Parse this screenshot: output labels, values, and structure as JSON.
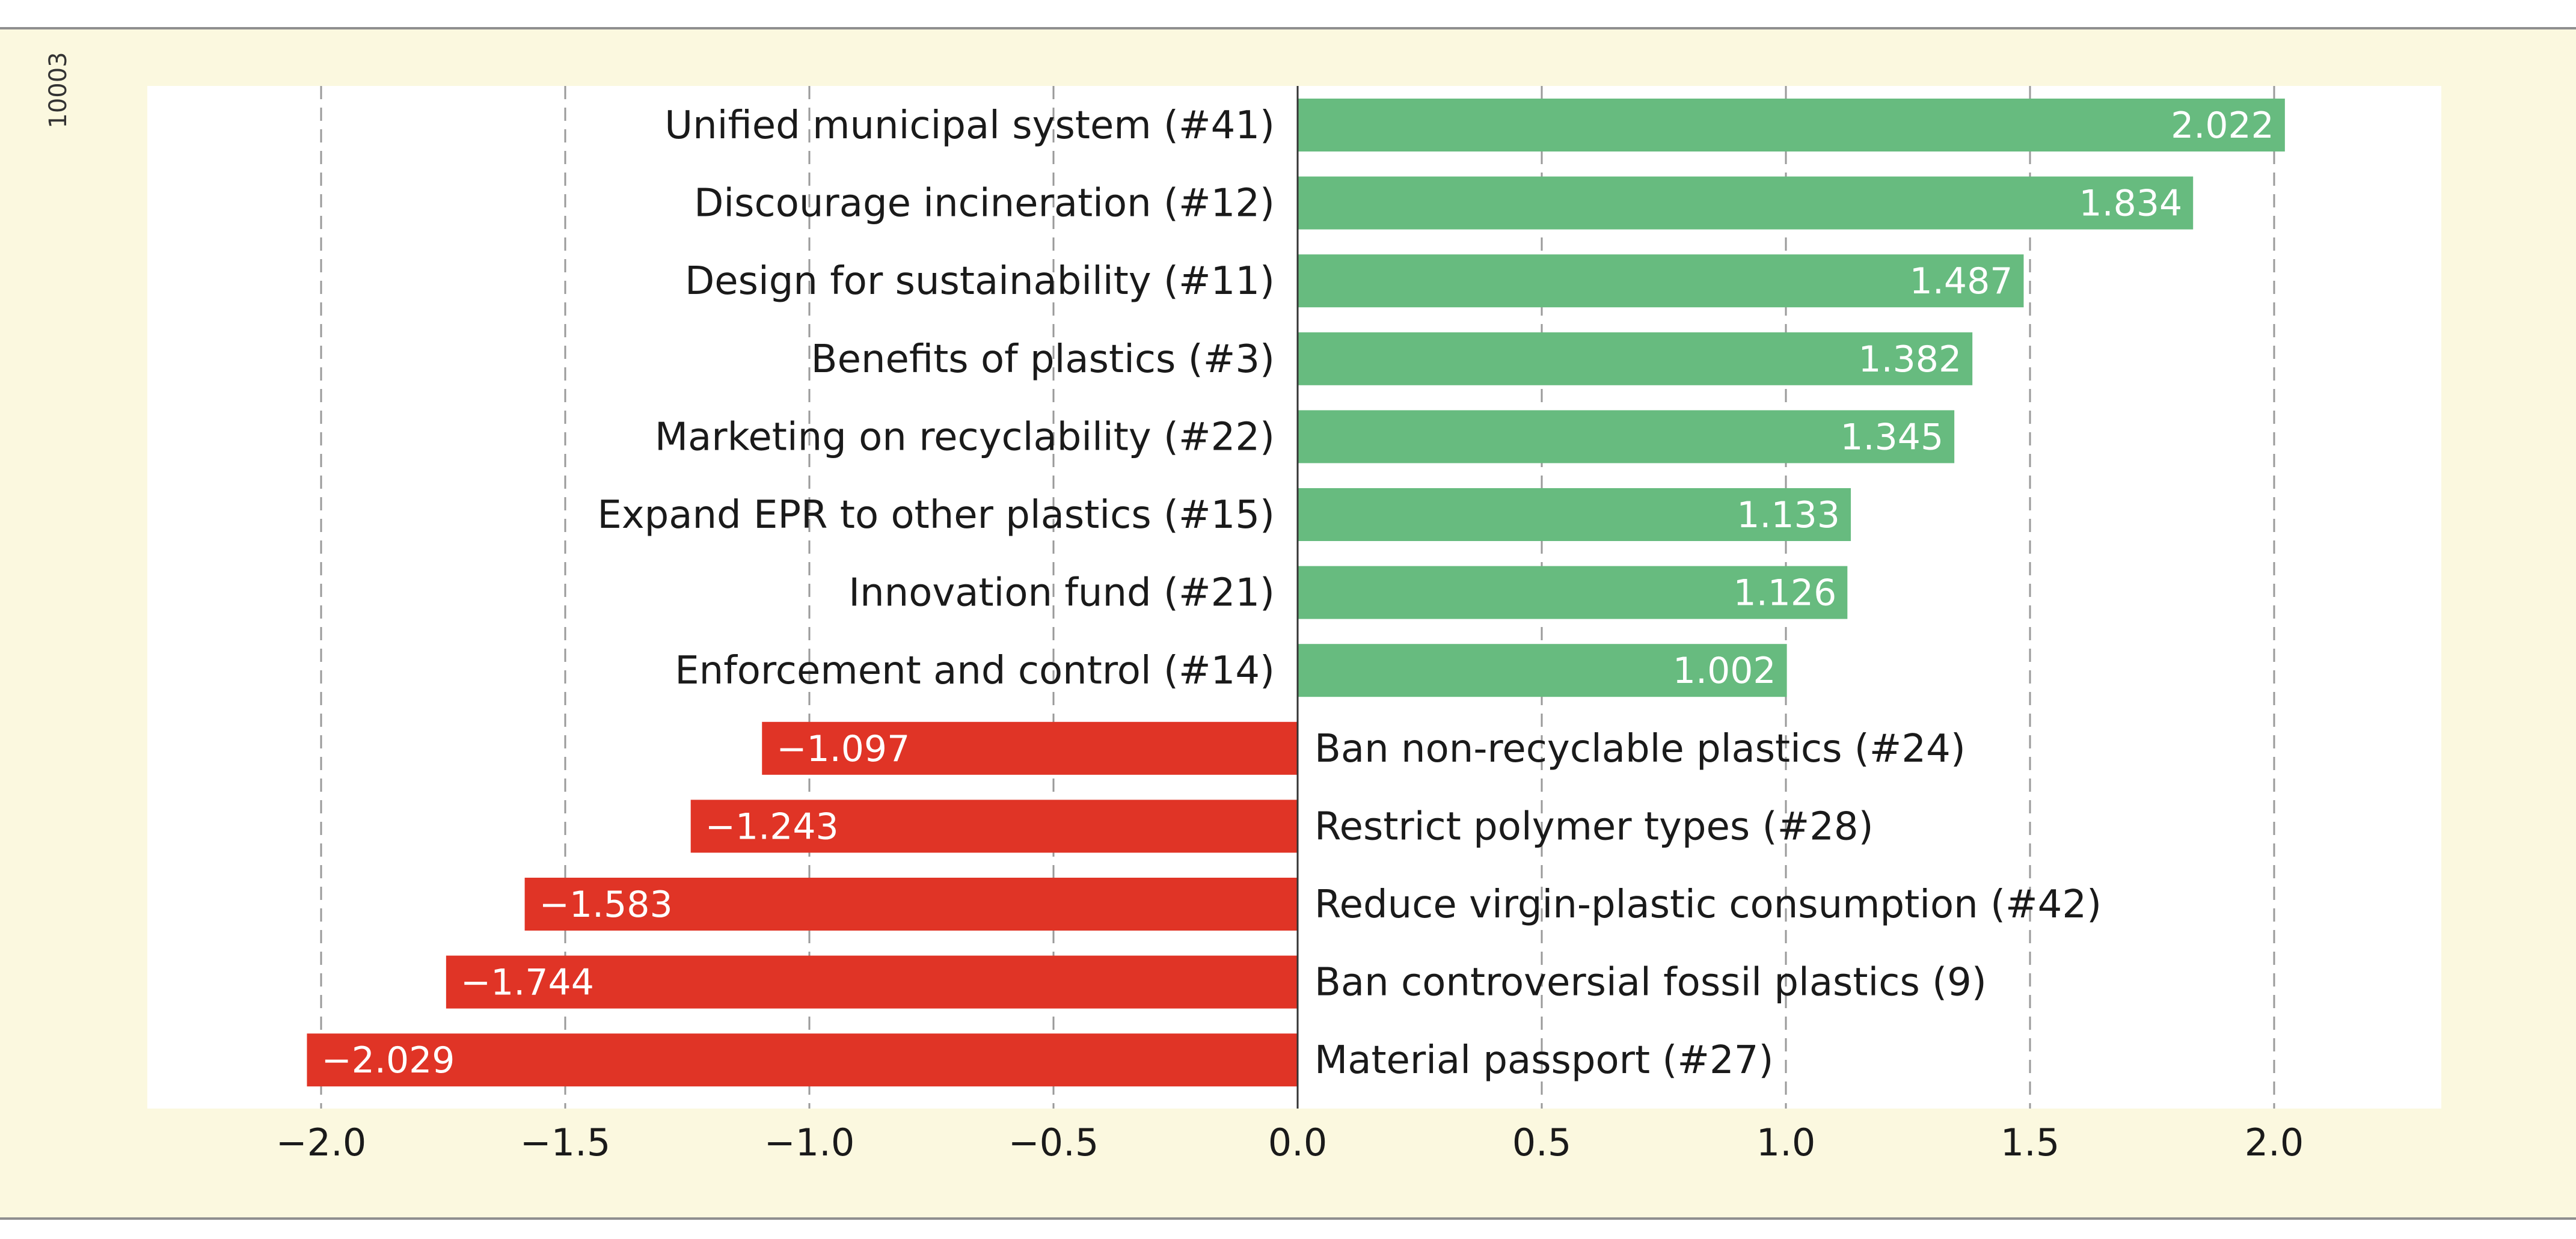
{
  "side_label": "10003",
  "colors": {
    "background": "#fbf8df",
    "plot_background": "#ffffff",
    "positive_bar": "#67bb7f",
    "negative_bar": "#e03426",
    "grid": "#9a9a9a",
    "axis": "#333333",
    "frame_line": "#8f8f8f"
  },
  "chart_data": {
    "type": "bar",
    "orientation": "horizontal",
    "title": "",
    "xlabel": "",
    "ylabel": "",
    "xlim": [
      -2.3,
      2.4
    ],
    "grid": "vertical dashed",
    "categories": [
      "Unified municipal system (#41)",
      "Discourage incineration (#12)",
      "Design for sustainability (#11)",
      "Benefits of plastics (#3)",
      "Marketing on recyclability (#22)",
      "Expand EPR to other plastics (#15)",
      "Innovation fund (#21)",
      "Enforcement and control (#14)",
      "Ban non-recyclable plastics (#24)",
      "Restrict polymer types (#28)",
      "Reduce virgin-plastic consumption (#42)",
      "Ban controversial fossil plastics (9)",
      "Material passport (#27)"
    ],
    "values": [
      2.022,
      1.834,
      1.487,
      1.382,
      1.345,
      1.133,
      1.126,
      1.002,
      -1.097,
      -1.243,
      -1.583,
      -1.744,
      -2.029
    ],
    "value_labels": [
      "2.022",
      "1.834",
      "1.487",
      "1.382",
      "1.345",
      "1.133",
      "1.126",
      "1.002",
      "−1.097",
      "−1.243",
      "−1.583",
      "−1.744",
      "−2.029"
    ],
    "xticks": [
      -2.0,
      -1.5,
      -1.0,
      -0.5,
      0.0,
      0.5,
      1.0,
      1.5,
      2.0
    ],
    "xtick_labels": [
      "−2.0",
      "−1.5",
      "−1.0",
      "−0.5",
      "0.0",
      "0.5",
      "1.0",
      "1.5",
      "2.0"
    ]
  }
}
